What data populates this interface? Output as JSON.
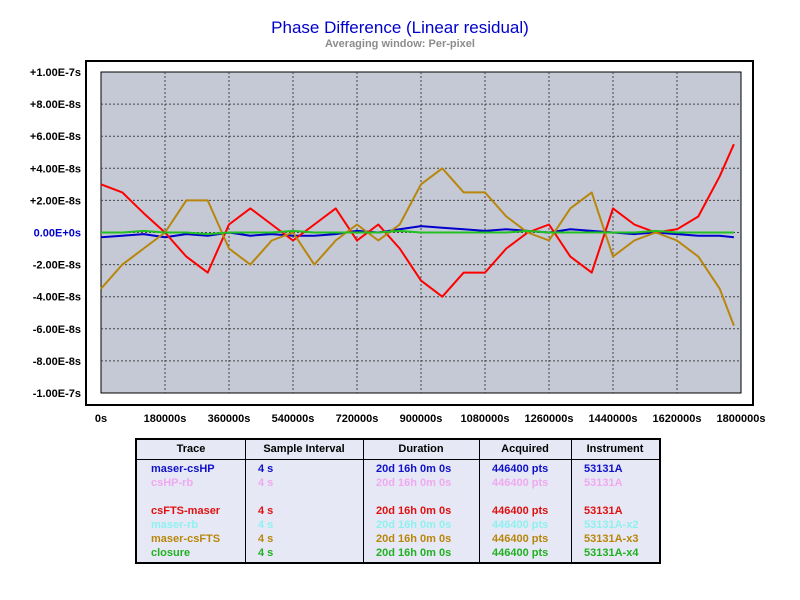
{
  "chart_data": {
    "type": "line",
    "title": "Phase Difference (Linear residual)",
    "subtitle": "Averaging window: Per-pixel",
    "xlabel": "",
    "ylabel": "",
    "xlim": [
      0,
      1800000
    ],
    "ylim": [
      -1e-07,
      1e-07
    ],
    "grid": true,
    "x_ticks": [
      "0s",
      "180000s",
      "360000s",
      "540000s",
      "720000s",
      "900000s",
      "1080000s",
      "1260000s",
      "1440000s",
      "1620000s",
      "1800000s"
    ],
    "y_ticks": [
      "+1.00E-7s",
      "+8.00E-8s",
      "+6.00E-8s",
      "+4.00E-8s",
      "+2.00E-8s",
      "0.00E+0s",
      "-2.00E-8s",
      "-4.00E-8s",
      "-6.00E-8s",
      "-8.00E-8s",
      "-1.00E-7s"
    ],
    "x": [
      0,
      60000,
      120000,
      180000,
      240000,
      300000,
      360000,
      420000,
      480000,
      540000,
      600000,
      660000,
      720000,
      780000,
      840000,
      900000,
      960000,
      1020000,
      1080000,
      1140000,
      1200000,
      1260000,
      1320000,
      1380000,
      1440000,
      1500000,
      1560000,
      1620000,
      1680000,
      1740000,
      1780000
    ],
    "series": [
      {
        "name": "maser-csHP",
        "color": "#0000cc",
        "values": [
          -3e-09,
          -2e-09,
          -1e-09,
          -3e-09,
          -1e-09,
          -2e-09,
          0.0,
          -2e-09,
          -1e-09,
          -2e-09,
          -2e-09,
          -1e-09,
          1e-09,
          0.0,
          2e-09,
          4e-09,
          3e-09,
          2e-09,
          1e-09,
          2e-09,
          1e-09,
          0.0,
          2e-09,
          1e-09,
          0.0,
          -1e-09,
          0.0,
          -1e-09,
          -2e-09,
          -2e-09,
          -3e-09
        ]
      },
      {
        "name": "csFTS-maser",
        "color": "#ff0000",
        "values": [
          3e-08,
          2.5e-08,
          1.2e-08,
          0.0,
          -1.5e-08,
          -2.5e-08,
          5e-09,
          1.5e-08,
          5e-09,
          -5e-09,
          5e-09,
          1.5e-08,
          -5e-09,
          5e-09,
          -1e-08,
          -3e-08,
          -4e-08,
          -2.5e-08,
          -2.5e-08,
          -1e-08,
          0.0,
          5e-09,
          -1.5e-08,
          -2.5e-08,
          1.5e-08,
          5e-09,
          0.0,
          2e-09,
          1e-08,
          3.5e-08,
          5.5e-08
        ]
      },
      {
        "name": "maser-csFTS",
        "color": "#b8860b",
        "values": [
          -3.5e-08,
          -2e-08,
          -1e-08,
          0.0,
          2e-08,
          2e-08,
          -1e-08,
          -2e-08,
          -5e-09,
          0.0,
          -2e-08,
          -5e-09,
          5e-09,
          -5e-09,
          5e-09,
          3e-08,
          4e-08,
          2.5e-08,
          2.5e-08,
          1e-08,
          0.0,
          -5e-09,
          1.5e-08,
          2.5e-08,
          -1.5e-08,
          -5e-09,
          0.0,
          -5e-09,
          -1.5e-08,
          -3.5e-08,
          -5.8e-08
        ]
      },
      {
        "name": "closure",
        "color": "#22c022",
        "values": [
          0.0,
          0.0,
          1e-09,
          0.0,
          0.0,
          -1e-09,
          0.0,
          0.0,
          0.0,
          1e-09,
          0.0,
          0.0,
          0.0,
          0.0,
          1e-09,
          0.0,
          0.0,
          0.0,
          0.0,
          0.0,
          1e-09,
          0.0,
          0.0,
          0.0,
          0.0,
          0.0,
          1e-09,
          0.0,
          0.0,
          0.0,
          0.0
        ]
      }
    ]
  },
  "legend": {
    "headers": [
      "Trace",
      "Sample Interval",
      "Duration",
      "Acquired",
      "Instrument"
    ],
    "rows": [
      {
        "trace": "maser-csHP",
        "interval": "4 s",
        "duration": "20d 16h 0m 0s",
        "acquired": "446400 pts",
        "instrument": "53131A",
        "color": "#1010c8"
      },
      {
        "trace": "csHP-rb",
        "interval": "4 s",
        "duration": "20d 16h 0m 0s",
        "acquired": "446400 pts",
        "instrument": "53131A",
        "color": "#f0a8f0"
      },
      {
        "trace": "",
        "interval": "",
        "duration": "",
        "acquired": "",
        "instrument": "",
        "color": "#c8f0c8"
      },
      {
        "trace": "csFTS-maser",
        "interval": "4 s",
        "duration": "20d 16h 0m 0s",
        "acquired": "446400 pts",
        "instrument": "53131A",
        "color": "#e01010"
      },
      {
        "trace": "maser-rb",
        "interval": "4 s",
        "duration": "20d 16h 0m 0s",
        "acquired": "446400 pts",
        "instrument": "53131A-x2",
        "color": "#90f0f0"
      },
      {
        "trace": "maser-csFTS",
        "interval": "4 s",
        "duration": "20d 16h 0m 0s",
        "acquired": "446400 pts",
        "instrument": "53131A-x3",
        "color": "#b8860b"
      },
      {
        "trace": "closure",
        "interval": "4 s",
        "duration": "20d 16h 0m 0s",
        "acquired": "446400 pts",
        "instrument": "53131A-x4",
        "color": "#22b022"
      }
    ]
  }
}
